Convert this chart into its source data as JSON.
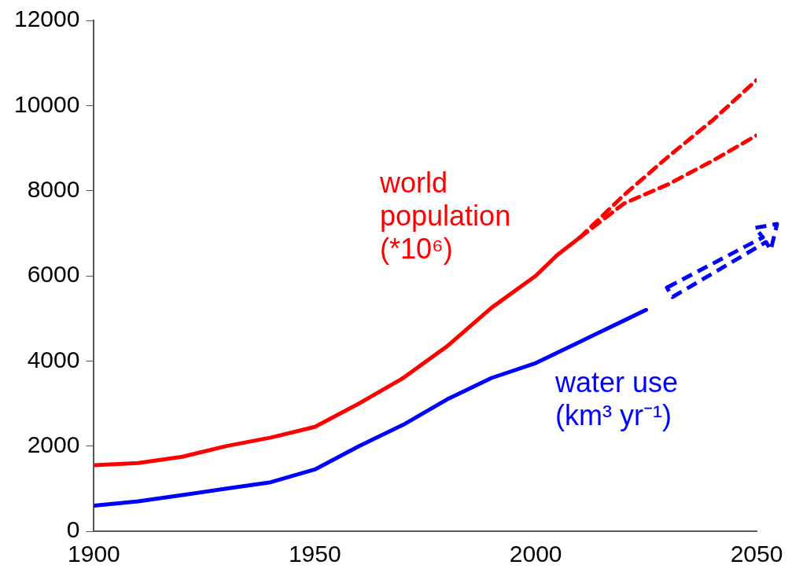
{
  "chart_data": {
    "type": "line",
    "xlim": [
      1900,
      2050
    ],
    "xticks": [
      1900,
      1950,
      2000,
      2050
    ],
    "ylim": [
      0,
      12000
    ],
    "yticks": [
      0,
      2000,
      4000,
      6000,
      8000,
      10000,
      12000
    ],
    "grid": false,
    "legend": false,
    "marker": "none",
    "series": [
      {
        "name": "world population (*10⁶)",
        "color": "#ff0000",
        "line_style": "solid",
        "x": [
          1900,
          1910,
          1920,
          1930,
          1940,
          1950,
          1960,
          1970,
          1980,
          1990,
          2000,
          2005,
          2010
        ],
        "values": [
          1550,
          1600,
          1750,
          2000,
          2200,
          2450,
          3000,
          3600,
          4350,
          5250,
          6000,
          6500,
          6900
        ]
      },
      {
        "color": "#ff0000",
        "line_style": "dashed",
        "x": [
          2010,
          2020,
          2030,
          2040,
          2050
        ],
        "values": [
          6900,
          7900,
          8800,
          9650,
          10600
        ]
      },
      {
        "color": "#ff0000",
        "line_style": "dashed",
        "x": [
          2010,
          2015,
          2020,
          2030,
          2040,
          2050
        ],
        "values": [
          6900,
          7300,
          7700,
          8150,
          8700,
          9300
        ]
      },
      {
        "name": "water use (km³ yr⁻¹)",
        "color": "#0000ff",
        "line_style": "solid",
        "x": [
          1900,
          1910,
          1920,
          1930,
          1940,
          1950,
          1960,
          1970,
          1980,
          1990,
          2000,
          2010,
          2020,
          2025
        ],
        "values": [
          600,
          700,
          850,
          1000,
          1150,
          1450,
          2000,
          2500,
          3100,
          3600,
          3950,
          4450,
          4950,
          5200
        ]
      }
    ]
  }
}
